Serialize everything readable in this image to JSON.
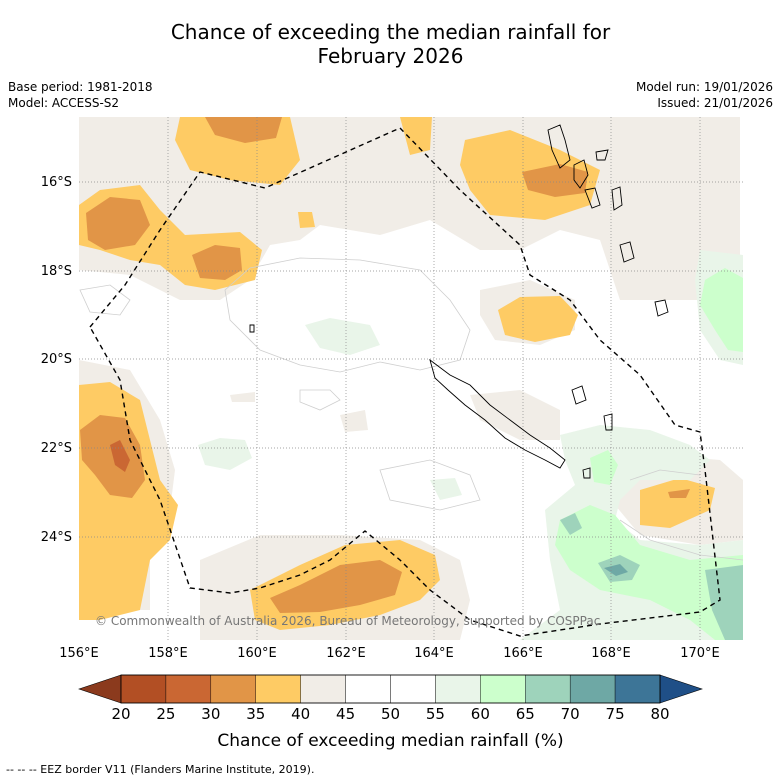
{
  "title": {
    "line1": "Chance of exceeding the median rainfall for",
    "line2": "February 2026"
  },
  "meta_left": {
    "base_period": "Base period: 1981-2018",
    "model": "Model: ACCESS-S2"
  },
  "meta_right": {
    "model_run": "Model run: 19/01/2026",
    "issued": "Issued: 21/01/2026"
  },
  "map": {
    "lat_labels": [
      "16°S",
      "18°S",
      "20°S",
      "22°S",
      "24°S"
    ],
    "lon_labels": [
      "156°E",
      "158°E",
      "160°E",
      "162°E",
      "164°E",
      "166°E",
      "168°E",
      "170°E"
    ],
    "copyright": "© Commonwealth of Australia 2026, Bureau of Meteorology, supported by COSPPac"
  },
  "colorbar": {
    "ticks": [
      "20",
      "25",
      "30",
      "35",
      "40",
      "45",
      "50",
      "55",
      "60",
      "65",
      "70",
      "75",
      "80"
    ],
    "colors": [
      "#b24f24",
      "#ca6733",
      "#e19547",
      "#fecb64",
      "#f1ede7",
      "#ffffff",
      "#ffffff",
      "#e9f5e9",
      "#ccffcc",
      "#9ed3bb",
      "#6ea8a5",
      "#3d7597"
    ],
    "under_color": "#8b3a1d",
    "over_color": "#1f4f87",
    "label": "Chance of exceeding median rainfall (%)"
  },
  "footnote": "-- -- -- EEZ border V11 (Flanders Marine Institute, 2019)."
}
